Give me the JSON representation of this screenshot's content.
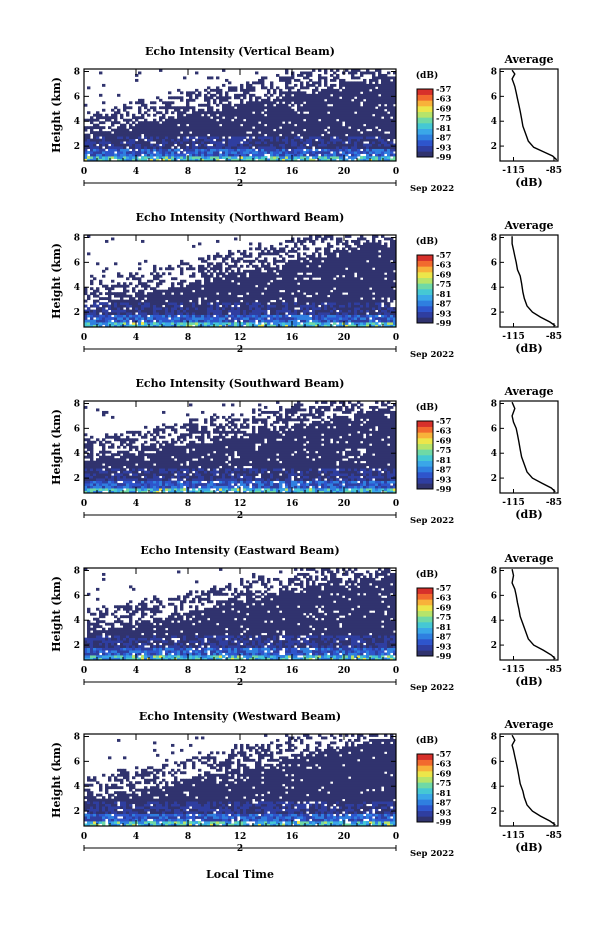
{
  "figure": {
    "xlabel": "Local Time",
    "ylabel": "Height (km)",
    "units": "(dB)",
    "month_label": "Sep 2022",
    "average_title": "Average",
    "average_xlabel": "(dB)"
  },
  "chart_data": [
    {
      "type": "heatmap",
      "title": "Echo Intensity (Vertical Beam)",
      "x_ticks": [
        "0",
        "4",
        "8",
        "12",
        "16",
        "20",
        "0"
      ],
      "day_label": "2",
      "y_ticks": [
        "2",
        "4",
        "6",
        "8"
      ],
      "ylim_km": [
        0.8,
        8.2
      ],
      "xlim_hours": [
        0,
        24
      ],
      "colorbar_ticks": [
        "-57",
        "-63",
        "-69",
        "-75",
        "-81",
        "-87",
        "-93",
        "-99"
      ],
      "profile": {
        "x_ticks": [
          "-115",
          "-85"
        ],
        "y_ticks": [
          "2",
          "4",
          "6",
          "8"
        ],
        "x": [
          -83,
          -86,
          -92,
          -100,
          -104,
          -106,
          -108,
          -109,
          -110,
          -111,
          -112,
          -113,
          -114,
          -115,
          -116,
          -114,
          -116
        ],
        "y": [
          0.9,
          1.2,
          1.5,
          1.9,
          2.4,
          3.0,
          3.6,
          4.2,
          4.8,
          5.3,
          5.8,
          6.3,
          6.8,
          7.1,
          7.4,
          7.8,
          8.1
        ]
      },
      "cover": {
        "top": 7.6,
        "edge": 3.0
      }
    },
    {
      "type": "heatmap",
      "title": "Echo Intensity (Northward Beam)",
      "x_ticks": [
        "0",
        "4",
        "8",
        "12",
        "16",
        "20",
        "0"
      ],
      "day_label": "2",
      "y_ticks": [
        "2",
        "4",
        "6",
        "8"
      ],
      "ylim_km": [
        0.8,
        8.2
      ],
      "xlim_hours": [
        0,
        24
      ],
      "colorbar_ticks": [
        "-57",
        "-63",
        "-69",
        "-75",
        "-81",
        "-87",
        "-93",
        "-99"
      ],
      "profile": {
        "x_ticks": [
          "-115",
          "-85"
        ],
        "y_ticks": [
          "2",
          "4",
          "6",
          "8"
        ],
        "x": [
          -84,
          -88,
          -95,
          -101,
          -105,
          -107,
          -108,
          -109,
          -110,
          -112,
          -113,
          -114,
          -115,
          -116,
          -116
        ],
        "y": [
          0.9,
          1.2,
          1.6,
          2.0,
          2.5,
          3.1,
          3.6,
          4.3,
          4.9,
          5.4,
          6.0,
          6.5,
          7.0,
          7.5,
          8.1
        ]
      },
      "cover": {
        "top": 7.8,
        "edge": 2.6
      }
    },
    {
      "type": "heatmap",
      "title": "Echo Intensity (Southward Beam)",
      "x_ticks": [
        "0",
        "4",
        "8",
        "12",
        "16",
        "20",
        "0"
      ],
      "day_label": "2",
      "y_ticks": [
        "2",
        "4",
        "6",
        "8"
      ],
      "ylim_km": [
        0.8,
        8.2
      ],
      "xlim_hours": [
        0,
        24
      ],
      "colorbar_ticks": [
        "-57",
        "-63",
        "-69",
        "-75",
        "-81",
        "-87",
        "-93",
        "-99"
      ],
      "profile": {
        "x_ticks": [
          "-115",
          "-85"
        ],
        "y_ticks": [
          "2",
          "4",
          "6",
          "8"
        ],
        "x": [
          -84,
          -87,
          -94,
          -101,
          -105,
          -107,
          -109,
          -110,
          -111,
          -112,
          -113,
          -115,
          -116,
          -114,
          -116
        ],
        "y": [
          0.9,
          1.2,
          1.6,
          2.0,
          2.5,
          3.1,
          3.7,
          4.3,
          4.9,
          5.5,
          6.0,
          6.5,
          7.0,
          7.6,
          8.1
        ]
      },
      "cover": {
        "top": 7.5,
        "edge": 3.4
      }
    },
    {
      "type": "heatmap",
      "title": "Echo Intensity (Eastward Beam)",
      "x_ticks": [
        "0",
        "4",
        "8",
        "12",
        "16",
        "20",
        "0"
      ],
      "day_label": "2",
      "y_ticks": [
        "2",
        "4",
        "6",
        "8"
      ],
      "ylim_km": [
        0.8,
        8.2
      ],
      "xlim_hours": [
        0,
        24
      ],
      "colorbar_ticks": [
        "-57",
        "-63",
        "-69",
        "-75",
        "-81",
        "-87",
        "-93",
        "-99"
      ],
      "profile": {
        "x_ticks": [
          "-115",
          "-85"
        ],
        "y_ticks": [
          "2",
          "4",
          "6",
          "8"
        ],
        "x": [
          -84,
          -87,
          -93,
          -100,
          -104,
          -106,
          -108,
          -110,
          -111,
          -112,
          -113,
          -114,
          -116,
          -115,
          -116
        ],
        "y": [
          0.9,
          1.2,
          1.6,
          2.0,
          2.5,
          3.1,
          3.7,
          4.3,
          4.9,
          5.4,
          6.0,
          6.5,
          7.0,
          7.6,
          8.1
        ]
      },
      "cover": {
        "top": 7.7,
        "edge": 3.0
      }
    },
    {
      "type": "heatmap",
      "title": "Echo Intensity (Westward Beam)",
      "x_ticks": [
        "0",
        "4",
        "8",
        "12",
        "16",
        "20",
        "0"
      ],
      "day_label": "2",
      "y_ticks": [
        "2",
        "4",
        "6",
        "8"
      ],
      "ylim_km": [
        0.8,
        8.2
      ],
      "xlim_hours": [
        0,
        24
      ],
      "colorbar_ticks": [
        "-57",
        "-63",
        "-69",
        "-75",
        "-81",
        "-87",
        "-93",
        "-99"
      ],
      "profile": {
        "x_ticks": [
          "-115",
          "-85"
        ],
        "y_ticks": [
          "2",
          "4",
          "6",
          "8"
        ],
        "x": [
          -84,
          -88,
          -95,
          -101,
          -105,
          -107,
          -108,
          -110,
          -111,
          -112,
          -113,
          -114,
          -115,
          -116,
          -114,
          -116
        ],
        "y": [
          0.9,
          1.2,
          1.6,
          2.0,
          2.5,
          3.1,
          3.6,
          4.2,
          4.8,
          5.4,
          5.9,
          6.4,
          6.9,
          7.3,
          7.7,
          8.1
        ]
      },
      "cover": {
        "top": 7.9,
        "edge": 2.8
      }
    }
  ],
  "colorscale": [
    "#30336e",
    "#2f3ea0",
    "#2e55cc",
    "#2f7fe0",
    "#3aa7e8",
    "#45c8d4",
    "#6fd9a6",
    "#b6e46a",
    "#ece64a",
    "#f8b23a",
    "#f26a2e",
    "#d7302a"
  ]
}
